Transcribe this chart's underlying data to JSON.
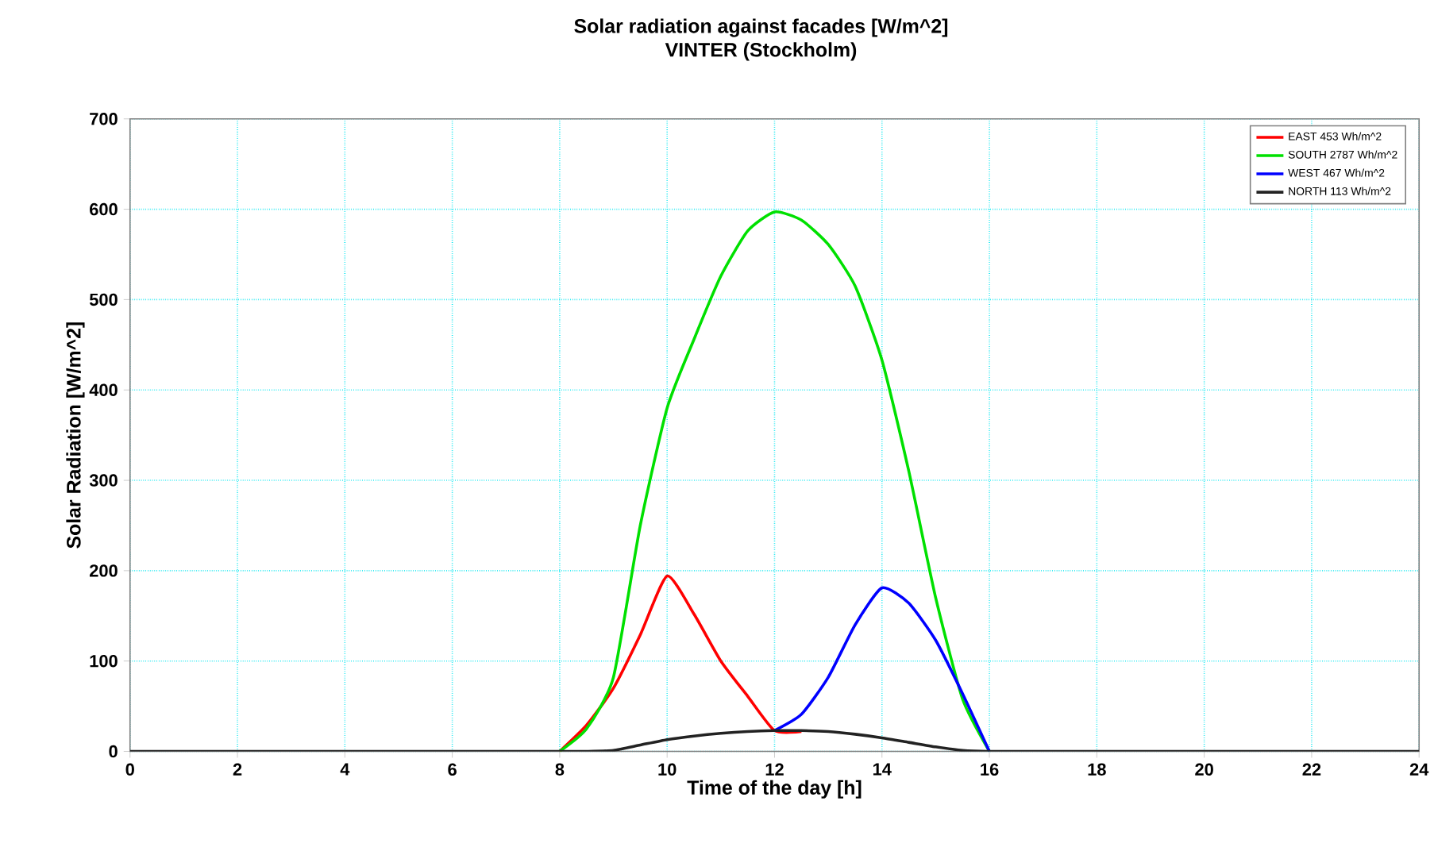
{
  "chart_data": {
    "type": "line",
    "title": "Solar radiation against facades [W/m^2]",
    "subtitle": "VINTER (Stockholm)",
    "xlabel": "Time of the day [h]",
    "ylabel": "Solar Radiation [W/m^2]",
    "xlim": [
      0,
      24
    ],
    "xticks": [
      0,
      2,
      4,
      6,
      8,
      10,
      12,
      14,
      16,
      18,
      20,
      22,
      24
    ],
    "ylim": [
      0,
      700
    ],
    "yticks": [
      0,
      100,
      200,
      300,
      400,
      500,
      600,
      700
    ],
    "grid": true,
    "legend": "top right",
    "x": [
      0,
      2,
      4,
      6,
      8,
      8.5,
      9,
      9.5,
      10,
      10.5,
      11,
      11.5,
      12,
      12.5,
      13,
      13.5,
      14,
      14.5,
      15,
      15.5,
      16,
      18,
      20,
      22,
      24
    ],
    "series": [
      {
        "name": "EAST 453 Wh/m^2",
        "color": "#ff0000",
        "values": [
          null,
          null,
          null,
          null,
          0,
          29,
          70,
          129,
          194,
          152,
          100,
          61,
          23,
          22,
          null,
          null,
          null,
          null,
          null,
          null,
          null,
          null,
          null,
          null,
          null
        ]
      },
      {
        "name": "SOUTH 2787 Wh/m^2",
        "color": "#00e000",
        "values": [
          null,
          null,
          null,
          null,
          0,
          25,
          82,
          250,
          380,
          456,
          526,
          576,
          597,
          588,
          561,
          515,
          433,
          310,
          170,
          58,
          0,
          null,
          null,
          null,
          null
        ]
      },
      {
        "name": "WEST 467 Wh/m^2",
        "color": "#0000ff",
        "values": [
          null,
          null,
          null,
          null,
          null,
          null,
          null,
          null,
          null,
          null,
          null,
          null,
          23,
          41,
          82,
          140,
          181,
          164,
          123,
          64,
          0,
          null,
          null,
          null,
          null
        ]
      },
      {
        "name": "NORTH 113 Wh/m^2",
        "color": "#222222",
        "values": [
          0,
          0,
          0,
          0,
          0,
          0,
          1,
          7,
          13,
          17,
          20,
          22,
          23,
          23,
          22,
          19,
          15,
          10,
          5,
          1,
          0,
          0,
          0,
          0,
          0
        ]
      }
    ]
  }
}
